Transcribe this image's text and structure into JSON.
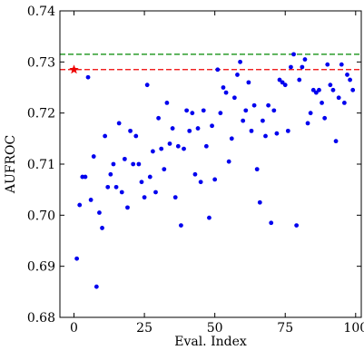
{
  "chart_data": {
    "type": "scatter",
    "title": "",
    "xlabel": "Eval. Index",
    "ylabel": "AUFROC",
    "xlim": [
      -5,
      102
    ],
    "ylim": [
      0.68,
      0.74
    ],
    "xticks": [
      0,
      25,
      50,
      75,
      100
    ],
    "xtick_labels": [
      "0",
      "25",
      "50",
      "75",
      "100"
    ],
    "yticks": [
      0.68,
      0.69,
      0.7,
      0.71,
      0.72,
      0.73,
      0.74
    ],
    "ytick_labels": [
      "0.68",
      "0.69",
      "0.70",
      "0.71",
      "0.72",
      "0.73",
      "0.74"
    ],
    "grid": false,
    "colors": {
      "points": "#0000ee",
      "baseline": "#ee0000",
      "best": "#008800",
      "star": "#ee0000"
    },
    "series": [
      {
        "x": [
          1,
          2,
          3,
          4,
          5,
          6,
          7,
          8,
          9,
          10,
          11,
          12,
          13,
          14,
          15,
          16,
          17,
          18,
          19,
          20,
          21,
          22,
          23,
          24,
          25,
          26,
          27,
          28,
          29,
          30,
          31,
          32,
          33,
          34,
          35,
          36,
          37,
          38,
          39,
          40,
          41,
          42,
          43,
          44,
          45,
          46,
          47,
          48,
          49,
          50,
          51,
          52,
          53,
          54,
          55,
          56,
          57,
          58,
          59,
          60,
          61,
          62,
          63,
          64,
          65,
          66,
          67,
          68,
          69,
          70,
          71,
          72,
          73,
          74,
          75,
          76,
          77,
          78,
          79,
          80,
          81,
          82,
          83,
          84,
          85,
          86,
          87,
          88,
          89,
          90,
          91,
          92,
          93,
          94,
          95,
          96,
          97,
          98,
          99
        ],
        "y": [
          0.6915,
          0.702,
          0.7075,
          0.7075,
          0.727,
          0.703,
          0.7115,
          0.686,
          0.7005,
          0.6975,
          0.7155,
          0.7055,
          0.708,
          0.71,
          0.7055,
          0.718,
          0.7045,
          0.711,
          0.7015,
          0.7165,
          0.71,
          0.7155,
          0.71,
          0.7065,
          0.7035,
          0.7255,
          0.7075,
          0.7125,
          0.7045,
          0.719,
          0.713,
          0.709,
          0.722,
          0.714,
          0.717,
          0.7035,
          0.7135,
          0.698,
          0.713,
          0.7205,
          0.7165,
          0.72,
          0.708,
          0.717,
          0.7065,
          0.7205,
          0.7135,
          0.6995,
          0.7175,
          0.707,
          0.7285,
          0.72,
          0.725,
          0.724,
          0.7105,
          0.715,
          0.723,
          0.7275,
          0.73,
          0.7185,
          0.7205,
          0.726,
          0.7165,
          0.7215,
          0.709,
          0.7025,
          0.7185,
          0.7155,
          0.7215,
          0.6985,
          0.7205,
          0.716,
          0.7265,
          0.726,
          0.7255,
          0.7165,
          0.729,
          0.7315,
          0.698,
          0.7265,
          0.729,
          0.7305,
          0.718,
          0.72,
          0.7245,
          0.724,
          0.7245,
          0.722,
          0.719,
          0.7295,
          0.7255,
          0.7245,
          0.7145,
          0.723,
          0.7295,
          0.722,
          0.7275,
          0.7265,
          0.7245
        ]
      }
    ],
    "reference_lines": [
      {
        "y": 0.7285,
        "style": "dashed",
        "color": "#ee0000"
      },
      {
        "y": 0.7315,
        "style": "dashed",
        "color": "#008800"
      }
    ],
    "markers": [
      {
        "x": 0,
        "y": 0.7285,
        "shape": "star",
        "color": "#ee0000"
      }
    ]
  }
}
